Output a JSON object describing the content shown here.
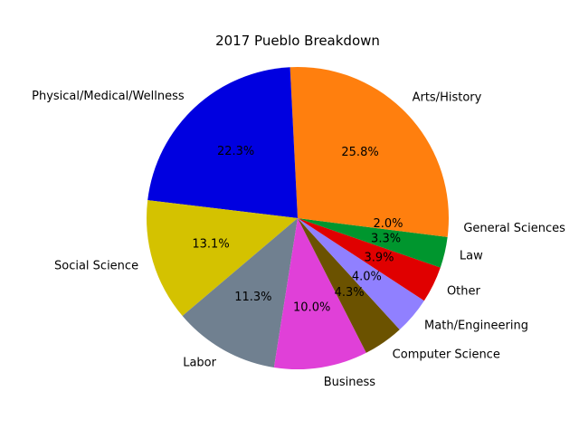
{
  "chart_data": {
    "type": "pie",
    "title": "2017 Pueblo Breakdown",
    "start_angle_deg": 0,
    "direction": "counterclockwise",
    "slices": [
      {
        "label": "Arts/History",
        "value": 25.8,
        "pct_label": "25.8%",
        "color": "#ff7f0e"
      },
      {
        "label": "Physical/Medical/Wellness",
        "value": 22.3,
        "pct_label": "22.3%",
        "color": "#0000e0"
      },
      {
        "label": "Social Science",
        "value": 13.1,
        "pct_label": "13.1%",
        "color": "#d4c200"
      },
      {
        "label": "Labor",
        "value": 11.3,
        "pct_label": "11.3%",
        "color": "#708090"
      },
      {
        "label": "Business",
        "value": 10.0,
        "pct_label": "10.0%",
        "color": "#e040d8"
      },
      {
        "label": "Computer Science",
        "value": 4.3,
        "pct_label": "4.3%",
        "color": "#6b5200"
      },
      {
        "label": "Math/Engineering",
        "value": 4.0,
        "pct_label": "4.0%",
        "color": "#9080ff"
      },
      {
        "label": "Other",
        "value": 3.9,
        "pct_label": "3.9%",
        "color": "#e00000"
      },
      {
        "label": "Law",
        "value": 3.3,
        "pct_label": "3.3%",
        "color": "#00962e"
      },
      {
        "label": "General Sciences",
        "value": 2.0,
        "pct_label": "2.0%",
        "color": "#ff7f0e"
      }
    ]
  }
}
